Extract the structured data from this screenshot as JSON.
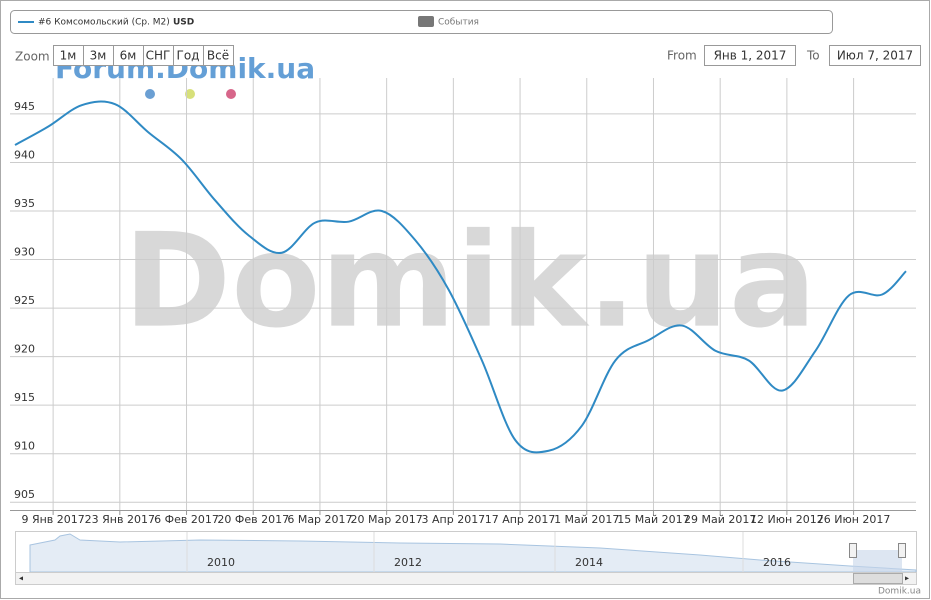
{
  "chart_data": {
    "type": "line",
    "legend": {
      "events": "События"
    },
    "currency": "USD",
    "zoom": {
      "label": "Zoom",
      "buttons": [
        "1м",
        "3м",
        "6м",
        "СНГ",
        "Год",
        "Всё"
      ]
    },
    "range": {
      "from_label": "From",
      "from": "Янв 1, 2017",
      "to_label": "To",
      "to": "Июл 7, 2017"
    },
    "watermarks": [
      "Forum.Domik.ua",
      "Domik.ua"
    ],
    "credit": "Domik.ua",
    "navigator_ticks": [
      "2010",
      "2012",
      "2014",
      "2016"
    ],
    "x": [
      "2017-01-01",
      "2017-01-08",
      "2017-01-15",
      "2017-01-22",
      "2017-01-29",
      "2017-02-05",
      "2017-02-12",
      "2017-02-19",
      "2017-02-26",
      "2017-03-05",
      "2017-03-12",
      "2017-03-19",
      "2017-03-26",
      "2017-04-02",
      "2017-04-09",
      "2017-04-16",
      "2017-04-23",
      "2017-04-30",
      "2017-05-07",
      "2017-05-14",
      "2017-05-21",
      "2017-05-28",
      "2017-06-04",
      "2017-06-11",
      "2017-06-18",
      "2017-06-25",
      "2017-07-02",
      "2017-07-07"
    ],
    "series": [
      {
        "name": "#6 Комсомольский (Ср. M2)",
        "color": "#2f8ac4",
        "values": [
          941.8,
          943.7,
          945.9,
          946,
          943.1,
          940.3,
          936.1,
          932.5,
          930.7,
          933.8,
          933.9,
          935,
          932,
          926.9,
          919.6,
          911.4,
          910.3,
          912.9,
          919.6,
          921.7,
          923.2,
          920.6,
          919.6,
          916.5,
          920.6,
          926.3,
          926.4,
          928.8
        ]
      }
    ],
    "xlim": [
      "2017-01-01",
      "2017-07-07"
    ],
    "xticks": [
      {
        "value": "2017-01-09",
        "label": "9 Янв 2017"
      },
      {
        "value": "2017-01-23",
        "label": "23 Янв 2017"
      },
      {
        "value": "2017-02-06",
        "label": "6 Фев 2017"
      },
      {
        "value": "2017-02-20",
        "label": "20 Фев 2017"
      },
      {
        "value": "2017-03-06",
        "label": "6 Мар 2017"
      },
      {
        "value": "2017-03-20",
        "label": "20 Мар 2017"
      },
      {
        "value": "2017-04-03",
        "label": "3 Апр 2017"
      },
      {
        "value": "2017-04-17",
        "label": "17 Апр 2017"
      },
      {
        "value": "2017-05-01",
        "label": "1 Май 2017"
      },
      {
        "value": "2017-05-15",
        "label": "15 Май 2017"
      },
      {
        "value": "2017-05-29",
        "label": "29 Май 2017"
      },
      {
        "value": "2017-06-12",
        "label": "12 Июн 2017"
      },
      {
        "value": "2017-06-26",
        "label": "26 Июн 2017"
      }
    ],
    "ylim": [
      904.2,
      948.7
    ],
    "yticks": [
      905,
      910,
      915,
      920,
      925,
      930,
      935,
      940,
      945
    ],
    "grid": true
  }
}
